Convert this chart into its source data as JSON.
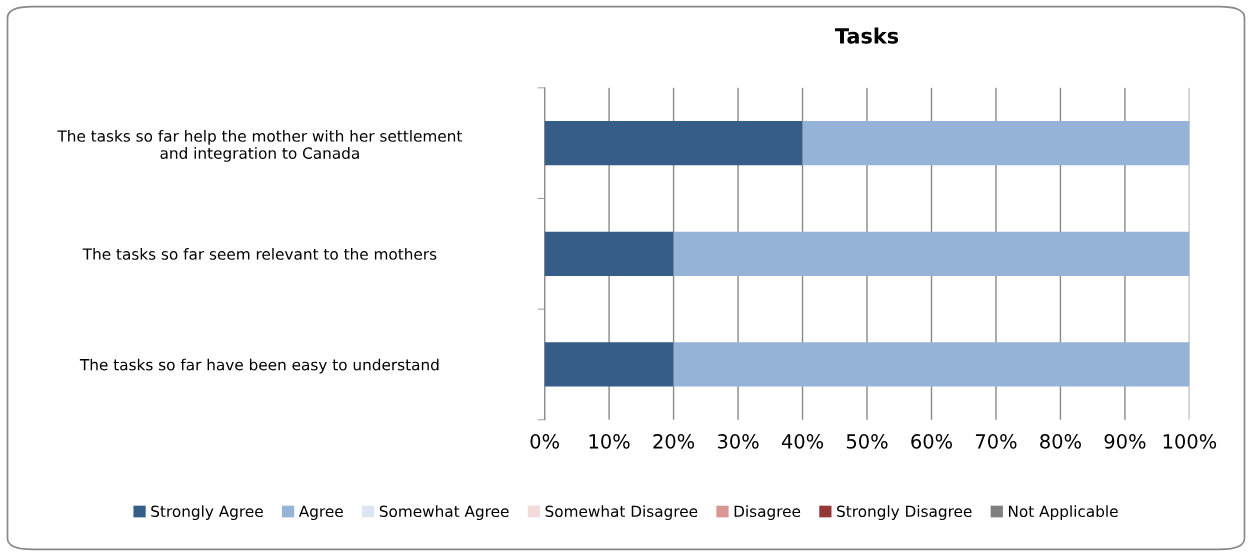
{
  "chart_data": {
    "type": "bar",
    "title": "Tasks",
    "orientation": "horizontal",
    "stacked": true,
    "categories": [
      "The tasks so far help the mother with her settlement and integration to Canada",
      "The tasks so far seem relevant to the mothers",
      "The tasks so far have been easy to understand"
    ],
    "series": [
      {
        "name": "Strongly Agree",
        "color": "#365c88",
        "values": [
          40,
          20,
          20
        ]
      },
      {
        "name": "Agree",
        "color": "#95b3d7",
        "values": [
          60,
          80,
          80
        ]
      },
      {
        "name": "Somewhat Agree",
        "color": "#dce6f2",
        "values": [
          0,
          0,
          0
        ]
      },
      {
        "name": "Somewhat Disagree",
        "color": "#f2dcdb",
        "values": [
          0,
          0,
          0
        ]
      },
      {
        "name": "Disagree",
        "color": "#d99694",
        "values": [
          0,
          0,
          0
        ]
      },
      {
        "name": "Strongly Disagree",
        "color": "#953735",
        "values": [
          0,
          0,
          0
        ]
      },
      {
        "name": "Not Applicable",
        "color": "#7f7f7f",
        "values": [
          0,
          0,
          0
        ]
      }
    ],
    "xlim": [
      0,
      100
    ],
    "xticks": [
      {
        "value": 0,
        "label": "0%"
      },
      {
        "value": 10,
        "label": "10%"
      },
      {
        "value": 20,
        "label": "20%"
      },
      {
        "value": 30,
        "label": "30%"
      },
      {
        "value": 40,
        "label": "40%"
      },
      {
        "value": 50,
        "label": "50%"
      },
      {
        "value": 60,
        "label": "60%"
      },
      {
        "value": 70,
        "label": "70%"
      },
      {
        "value": 80,
        "label": "80%"
      },
      {
        "value": 90,
        "label": "90%"
      },
      {
        "value": 100,
        "label": "100%"
      }
    ],
    "grid": "x",
    "legend": "bottom"
  }
}
